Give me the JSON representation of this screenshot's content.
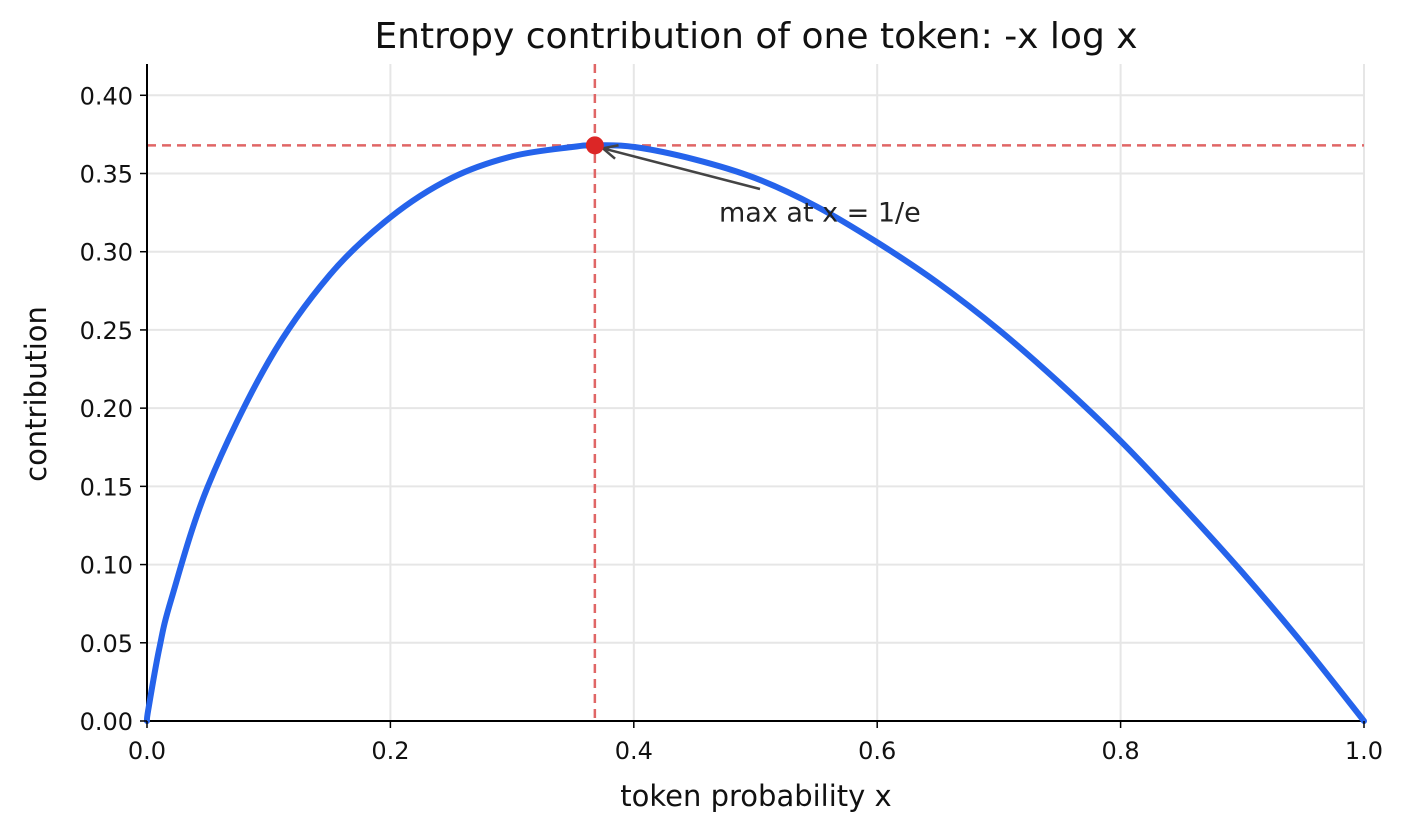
{
  "chart_data": {
    "type": "line",
    "title": "Entropy contribution of one token:  -x log x",
    "xlabel": "token probability x",
    "ylabel": "contribution",
    "xlim": [
      0.0,
      1.0
    ],
    "ylim": [
      0.0,
      0.42
    ],
    "grid": true,
    "x_ticks": [
      "0.0",
      "0.2",
      "0.4",
      "0.6",
      "0.8",
      "1.0"
    ],
    "y_ticks": [
      "0.00",
      "0.05",
      "0.10",
      "0.15",
      "0.20",
      "0.25",
      "0.30",
      "0.35",
      "0.40"
    ],
    "series": [
      {
        "function": "-x log x",
        "color": "#2563eb",
        "x": [
          0.001,
          0.01,
          0.02,
          0.05,
          0.1,
          0.15,
          0.2,
          0.25,
          0.3,
          0.35,
          0.368,
          0.4,
          0.45,
          0.5,
          0.55,
          0.6,
          0.65,
          0.7,
          0.75,
          0.8,
          0.85,
          0.9,
          0.95,
          1.0
        ],
        "y": [
          0.007,
          0.046,
          0.078,
          0.15,
          0.23,
          0.285,
          0.322,
          0.347,
          0.361,
          0.367,
          0.368,
          0.367,
          0.359,
          0.347,
          0.329,
          0.306,
          0.28,
          0.25,
          0.216,
          0.179,
          0.138,
          0.095,
          0.049,
          0.0
        ]
      }
    ],
    "marker": {
      "x": 0.368,
      "y": 0.368,
      "color": "#dc2626"
    },
    "reference_lines": {
      "vertical_x": 0.368,
      "horizontal_y": 0.368,
      "color": "#e06666"
    },
    "annotation": {
      "text": "max at x = 1/e",
      "target_x": 0.368,
      "target_y": 0.368,
      "text_x": 0.47,
      "text_y": 0.32
    }
  }
}
